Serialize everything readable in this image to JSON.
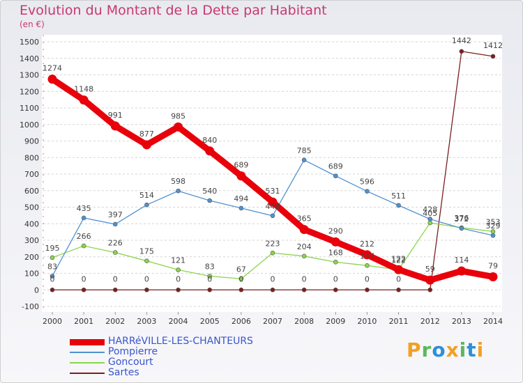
{
  "header": {
    "title": "Evolution du Montant de la Dette par Habitant",
    "subtitle": "(en €)"
  },
  "logo": {
    "text": "Proxiti",
    "letters": [
      {
        "ch": "P",
        "color": "#f2a023"
      },
      {
        "ch": "r",
        "color": "#5cb85c"
      },
      {
        "ch": "o",
        "color": "#2f8fd8"
      },
      {
        "ch": "x",
        "color": "#f2a023"
      },
      {
        "ch": "i",
        "color": "#5cb85c"
      },
      {
        "ch": "t",
        "color": "#2f8fd8"
      },
      {
        "ch": "i",
        "color": "#f2a023"
      }
    ]
  },
  "chart_data": {
    "type": "line",
    "title": "Evolution du Montant de la Dette par Habitant",
    "ylabel": "(en €)",
    "xlabel": "",
    "x": [
      "2000",
      "2001",
      "2002",
      "2003",
      "2004",
      "2005",
      "2006",
      "2007",
      "2008",
      "2009",
      "2010",
      "2011",
      "2012",
      "2013",
      "2014"
    ],
    "ylim": [
      -100,
      1500
    ],
    "yticks": [
      "-100",
      "0",
      "100",
      "200",
      "300",
      "400",
      "500",
      "600",
      "700",
      "800",
      "900",
      "1000",
      "1100",
      "1200",
      "1300",
      "1400",
      "1500"
    ],
    "grid": true,
    "legend": "bottom-left",
    "series": [
      {
        "name": "HARRéVILLE-LES-CHANTEURS",
        "color": "#e8000b",
        "values": [
          1274,
          1148,
          991,
          877,
          985,
          840,
          689,
          531,
          365,
          290,
          212,
          122,
          59,
          114,
          79
        ],
        "labels": [
          "1274",
          "1148",
          "991",
          "877",
          "985",
          "840",
          "689",
          "531",
          "365",
          "290",
          "212",
          "122",
          "59",
          "114",
          "79"
        ]
      },
      {
        "name": "Pompierre",
        "color": "#4f92d0",
        "values": [
          83,
          435,
          397,
          514,
          598,
          540,
          494,
          448,
          785,
          689,
          596,
          511,
          428,
          372,
          329
        ],
        "labels": [
          "83",
          "435",
          "397",
          "514",
          "598",
          "540",
          "494",
          "448",
          "785",
          "689",
          "596",
          "511",
          "428",
          "372",
          "329"
        ]
      },
      {
        "name": "Goncourt",
        "color": "#8bd44a",
        "values": [
          195,
          266,
          226,
          175,
          121,
          83,
          67,
          223,
          204,
          168,
          147,
          122,
          405,
          376,
          353
        ],
        "labels": [
          "195",
          "266",
          "226",
          "175",
          "121",
          "83",
          "67",
          "223",
          "204",
          "168",
          "147",
          "122",
          "405",
          "376",
          "353"
        ]
      },
      {
        "name": "Sartes",
        "color": "#7a1f1f",
        "values": [
          0,
          0,
          0,
          0,
          0,
          0,
          0,
          0,
          0,
          0,
          0,
          0,
          0,
          1442,
          1412
        ],
        "labels": [
          "0",
          "0",
          "0",
          "0",
          "0",
          "0",
          "0",
          "0",
          "0",
          "0",
          "0",
          "0",
          "",
          "1442",
          "1412"
        ]
      }
    ]
  }
}
